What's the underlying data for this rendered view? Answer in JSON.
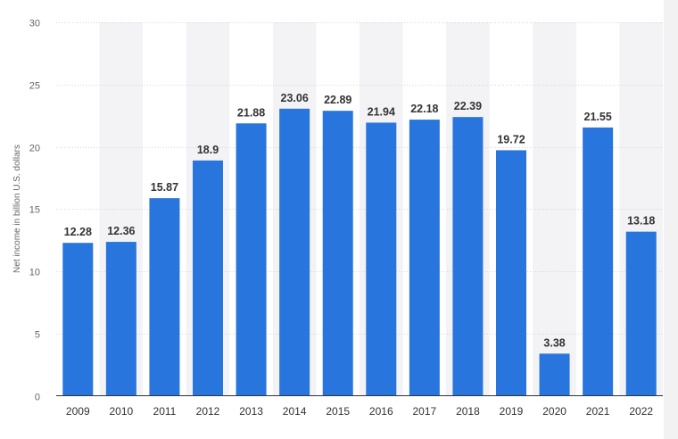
{
  "chart_data": {
    "type": "bar",
    "title": "",
    "xlabel": "",
    "ylabel": "Net income in billion U.S. dollars",
    "ylim": [
      0,
      30
    ],
    "yticks": [
      0,
      5,
      10,
      15,
      20,
      25,
      30
    ],
    "categories": [
      "2009",
      "2010",
      "2011",
      "2012",
      "2013",
      "2014",
      "2015",
      "2016",
      "2017",
      "2018",
      "2019",
      "2020",
      "2021",
      "2022"
    ],
    "values": [
      12.28,
      12.36,
      15.87,
      18.9,
      21.88,
      23.06,
      22.89,
      21.94,
      22.18,
      22.39,
      19.72,
      3.38,
      21.55,
      13.18
    ],
    "value_labels": [
      "12.28",
      "12.36",
      "15.87",
      "18.9",
      "21.88",
      "23.06",
      "22.89",
      "21.94",
      "22.18",
      "22.39",
      "19.72",
      "3.38",
      "21.55",
      "13.18"
    ],
    "grid": true,
    "alternating_column_shading": true,
    "legend": "none",
    "colors": {
      "bar": "#2876dd",
      "band": "#f3f3f6",
      "grid": "#d4d4d4",
      "axis": "#333333"
    }
  }
}
